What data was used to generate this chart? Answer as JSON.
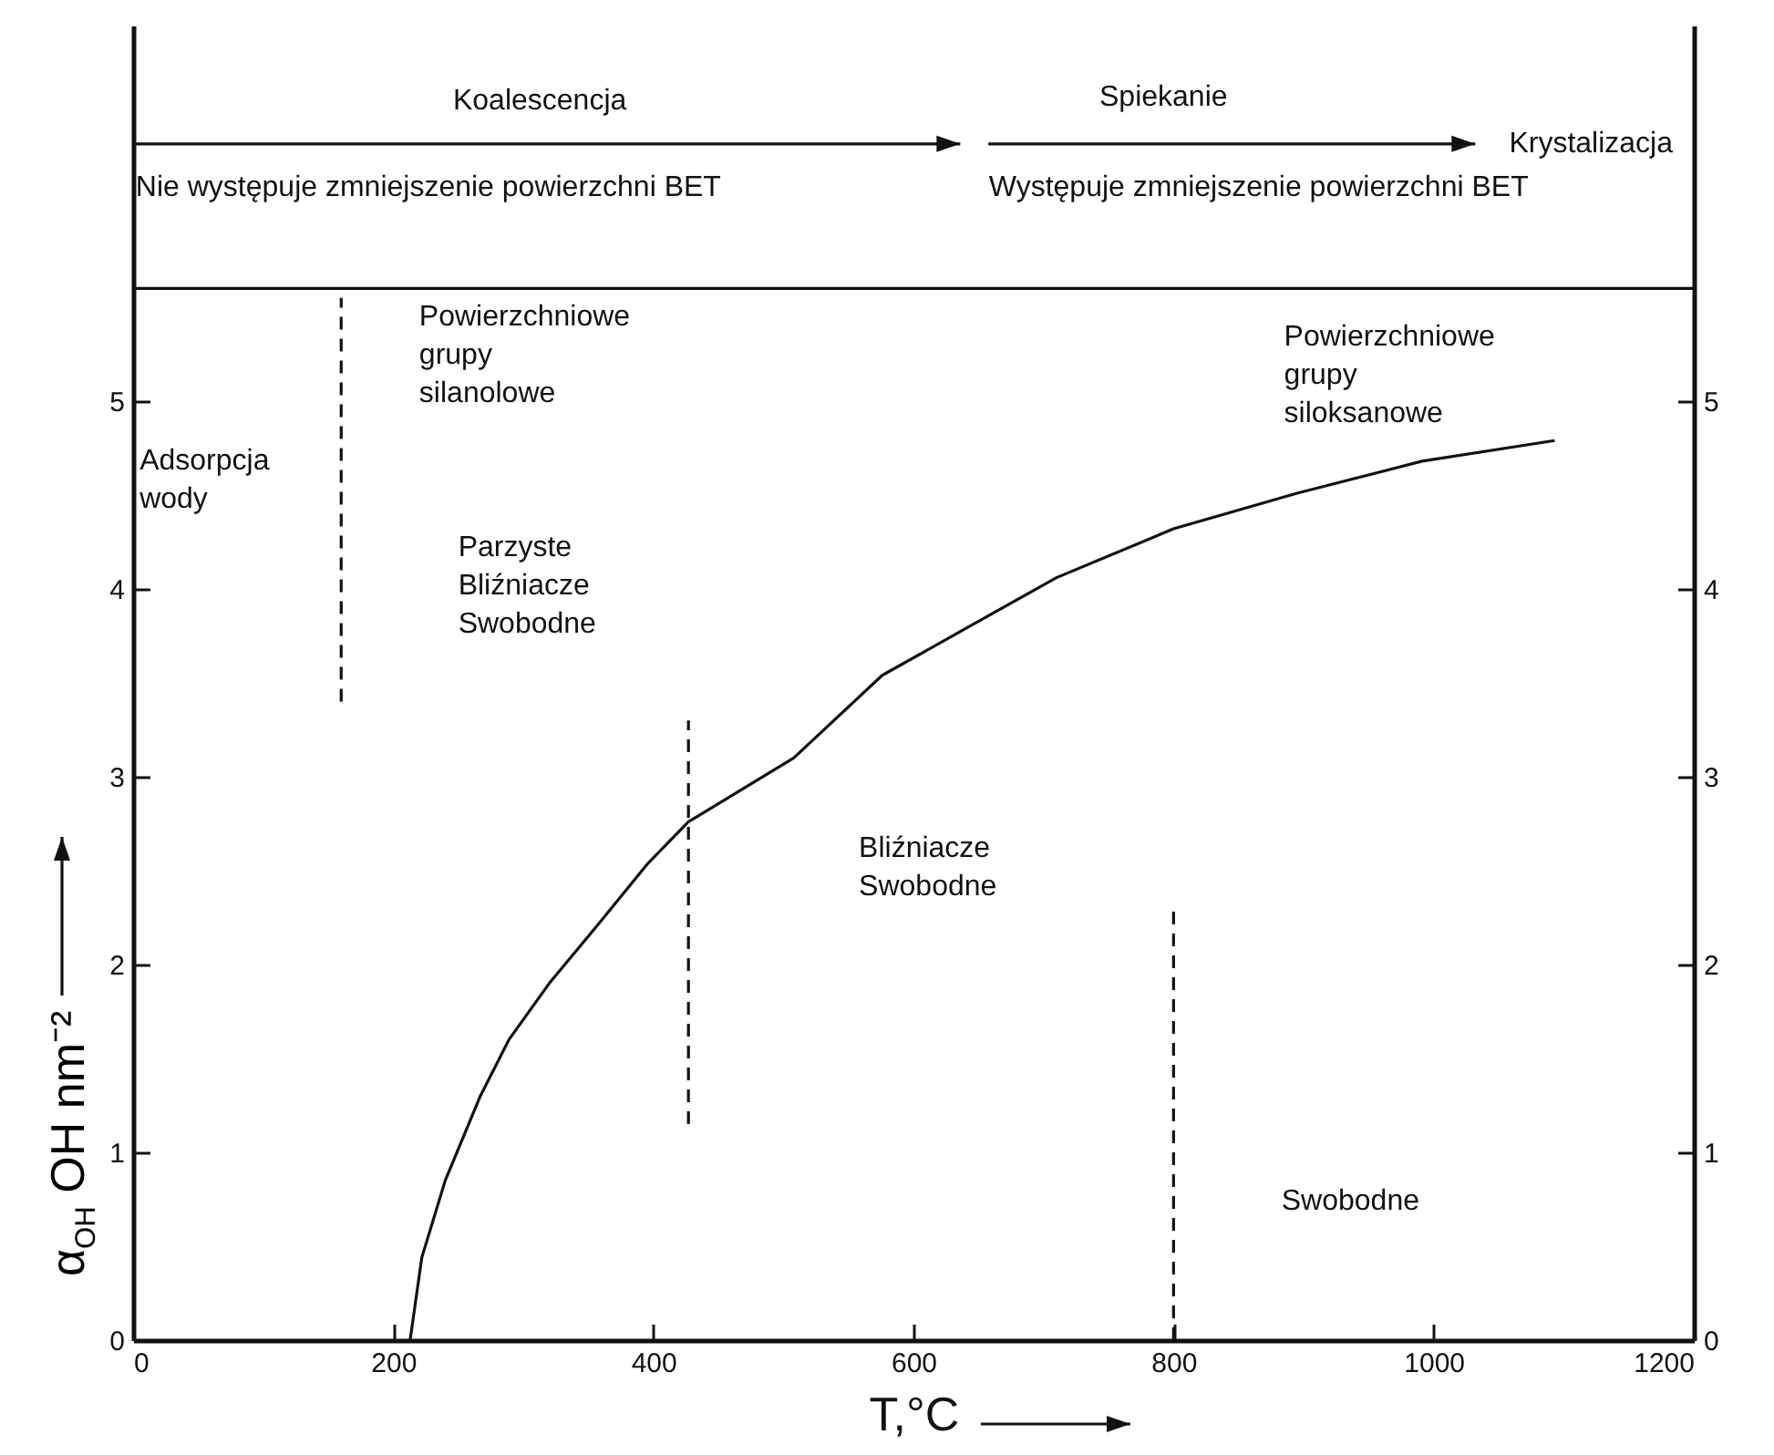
{
  "chart_data": {
    "type": "line",
    "xlabel": "T,°C",
    "ylabel": "α$_{OH}$ OH nm⁻²",
    "xlim": [
      0,
      1200
    ],
    "xticks": [
      0,
      200,
      400,
      600,
      800,
      1000,
      1200
    ],
    "ylim": [
      0,
      7
    ],
    "yticks": [
      0,
      1,
      2,
      3,
      4,
      5
    ],
    "y2lim": [
      0,
      7
    ],
    "y2ticks": [
      0,
      1,
      2,
      3,
      4,
      5
    ],
    "series": [
      {
        "color": "#111111",
        "line_style": "solid",
        "x": [
          213,
          222,
          240,
          267,
          289,
          320,
          356,
          396,
          427,
          508,
          576,
          643,
          710,
          800,
          895,
          991,
          1093
        ],
        "values": [
          0,
          0.44,
          0.85,
          1.3,
          1.6,
          1.9,
          2.2,
          2.54,
          2.76,
          3.1,
          3.54,
          3.8,
          4.06,
          4.32,
          4.51,
          4.68,
          4.79
        ]
      },
      {
        "color": "#111111",
        "line_style": "dashed",
        "x": [
          160,
          160
        ],
        "values": [
          3.4,
          5.55
        ]
      },
      {
        "color": "#111111",
        "line_style": "dashed",
        "x": [
          427,
          427
        ],
        "values": [
          1.15,
          3.3
        ]
      },
      {
        "color": "#111111",
        "line_style": "dashed",
        "x": [
          800,
          800
        ],
        "values": [
          0,
          2.3
        ]
      }
    ],
    "ref_lines": [
      {
        "axis": "y",
        "value": 5.6,
        "color": "#111111",
        "line_style": "solid"
      }
    ],
    "annotations": [
      "Koalescencja",
      "Spiekanie",
      "Krystalizacja",
      "Nie występuje zmniejszenie powierzchni BET",
      "Występuje zmniejszenie powierzchni BET",
      "Powierzchniowe\ngrupy\nsilanolowe",
      "Adsorpcja\nwody",
      "Parzyste\nBliźniacze\nSwobodne",
      "Powierzchniowe\ngrupy\nsiloksanowe",
      "Bliźniacze\nSwobodne",
      "Swobodne"
    ]
  }
}
